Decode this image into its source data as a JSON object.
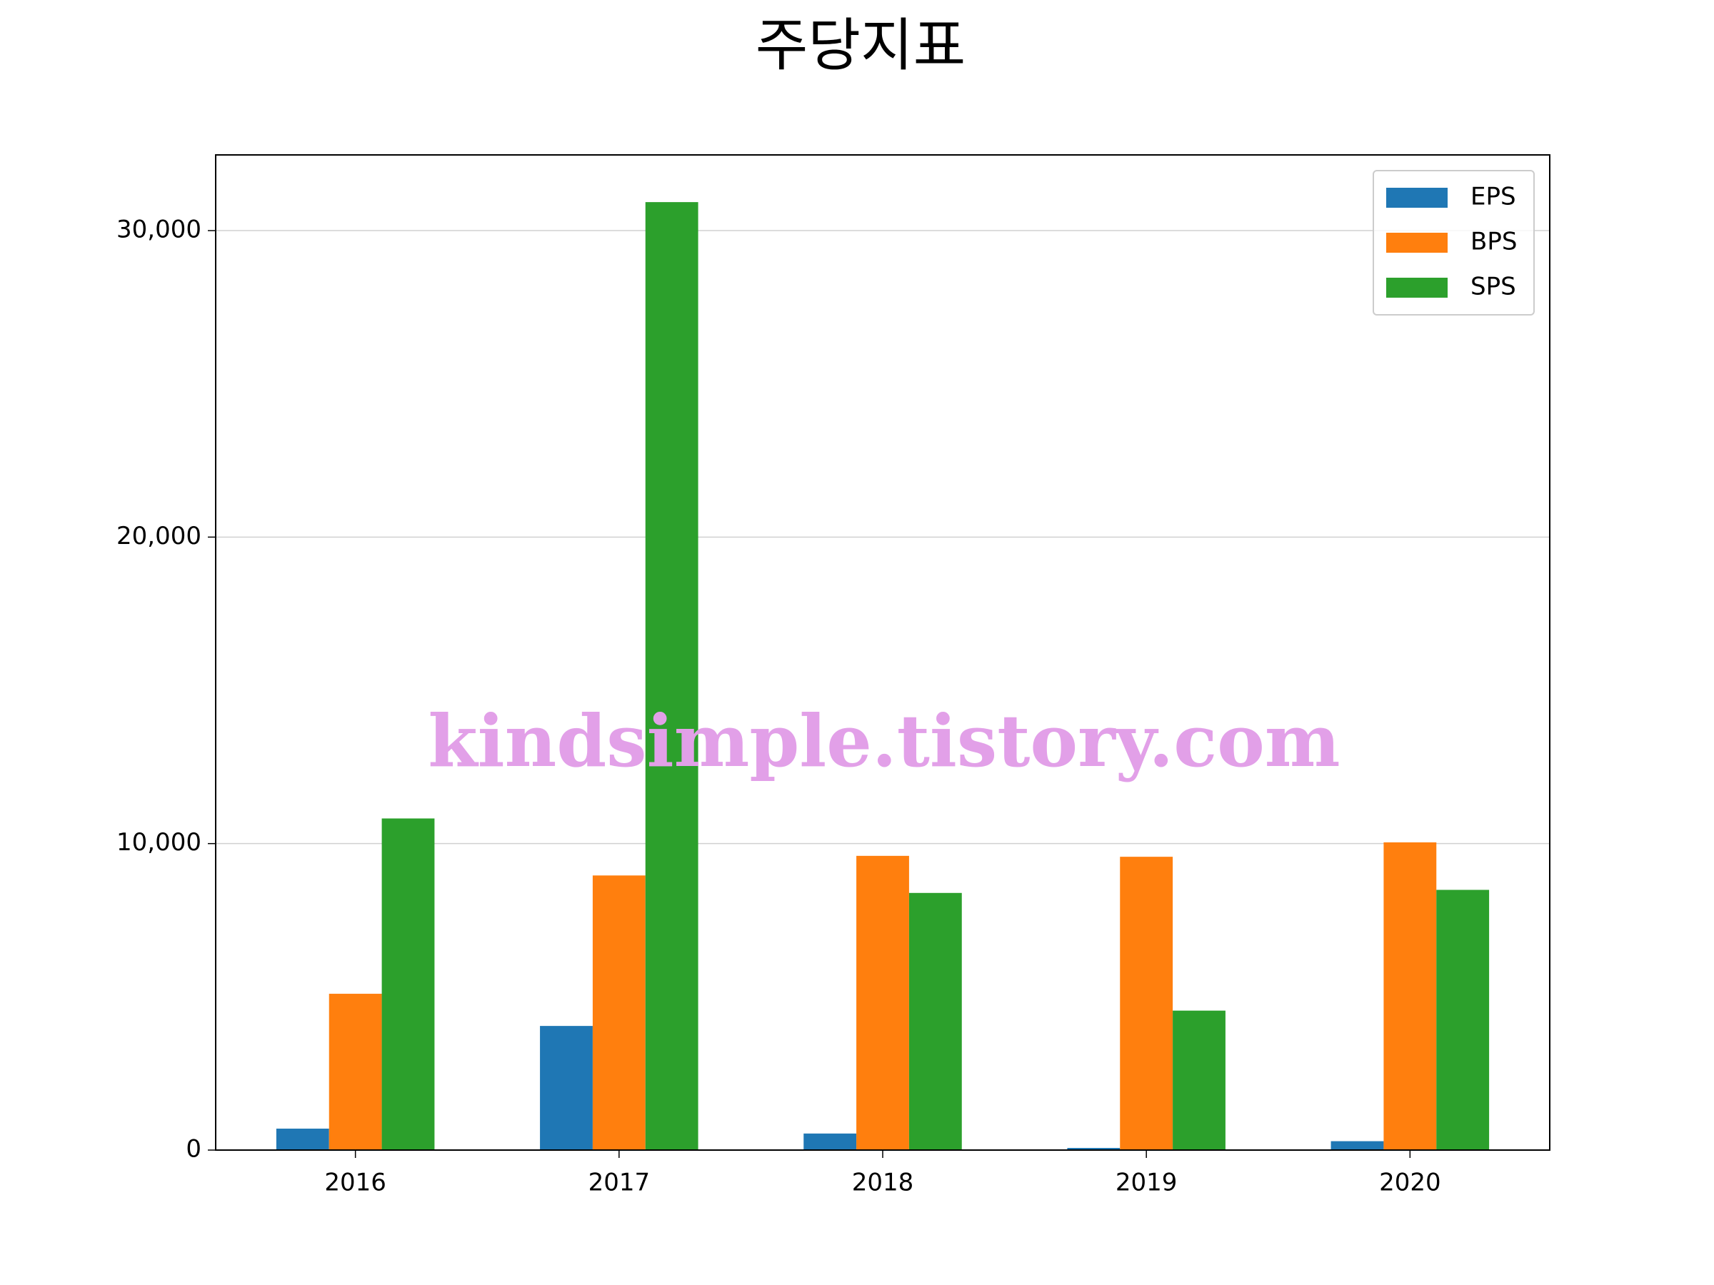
{
  "chart_data": {
    "type": "bar",
    "title": "주당지표",
    "categories": [
      "2016",
      "2017",
      "2018",
      "2019",
      "2020"
    ],
    "series": [
      {
        "name": "EPS",
        "color": "#1f77b4",
        "values": [
          700,
          4050,
          540,
          70,
          290
        ]
      },
      {
        "name": "BPS",
        "color": "#ff7f0e",
        "values": [
          5100,
          8960,
          9600,
          9570,
          10040
        ]
      },
      {
        "name": "SPS",
        "color": "#2ca02c",
        "values": [
          10820,
          30930,
          8390,
          4550,
          8490
        ]
      }
    ],
    "ylim": [
      0,
      32470
    ],
    "yticks": [
      0,
      {
        "value": 10000,
        "label": "10,000"
      },
      {
        "value": 20000,
        "label": "20,000"
      },
      {
        "value": 30000,
        "label": "30,000"
      }
    ],
    "grid": true,
    "legend": "upper right",
    "watermark": "kindsimple.tistory.com"
  }
}
